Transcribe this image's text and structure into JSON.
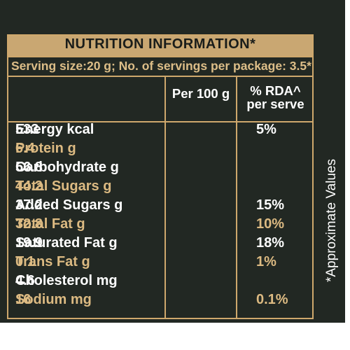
{
  "title": "NUTRITION INFORMATION*",
  "serving": "Serving size:20 g; No. of servings per package: 3.5*",
  "columns": {
    "per100": "Per 100 g",
    "rda_line1": "% RDA^",
    "rda_line2": "per serve"
  },
  "rows": [
    {
      "label": "Energy kcal",
      "per100": "533",
      "rda": "5%",
      "highlight": false
    },
    {
      "label": "Protein g",
      "per100": "6.4",
      "rda": "",
      "highlight": true
    },
    {
      "label": "Carbohydrate g",
      "per100": "56.8",
      "rda": "",
      "highlight": false
    },
    {
      "label": "Total Sugars g",
      "per100": "44.2",
      "rda": "",
      "highlight": true
    },
    {
      "label": "Added Sugars g",
      "per100": "37.2",
      "rda": "15%",
      "highlight": false
    },
    {
      "label": "Total Fat g",
      "per100": "32.8",
      "rda": "10%",
      "highlight": true
    },
    {
      "label": "Saturated Fat g",
      "per100": "19.9",
      "rda": "18%",
      "highlight": false
    },
    {
      "label": "Trans Fat g",
      "per100": "0.1",
      "rda": "1%",
      "highlight": true
    },
    {
      "label": "Cholesterol mg",
      "per100": "4.6",
      "rda": "",
      "highlight": false
    },
    {
      "label": "Sodium mg",
      "per100": "16",
      "rda": "0.1%",
      "highlight": true
    }
  ],
  "side_note": "*Approximate Values",
  "colors": {
    "background": "#222823",
    "gold": "#cfa86c",
    "text_gold": "#dcba82",
    "text_white": "#ffffff"
  }
}
